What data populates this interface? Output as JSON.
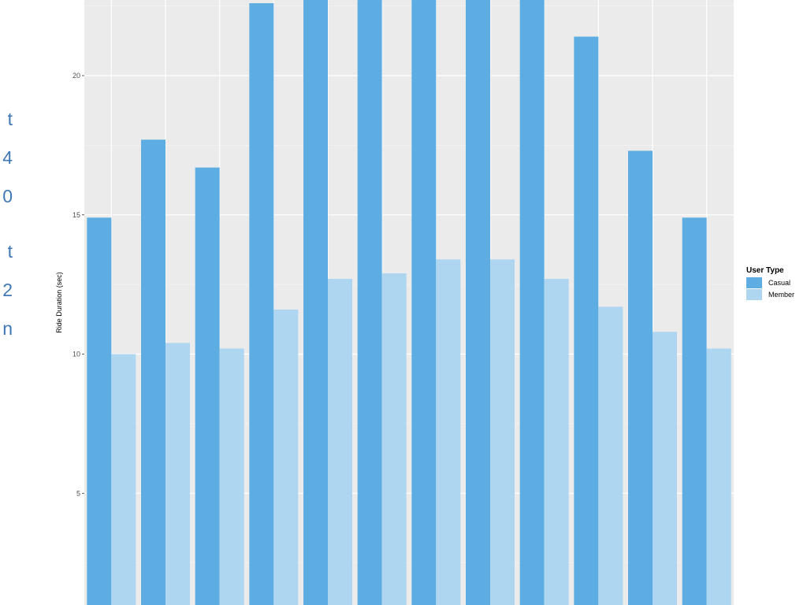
{
  "side_text": [
    "t",
    "4",
    "0",
    "t",
    "2",
    "n"
  ],
  "chart_data": {
    "type": "bar",
    "title": "",
    "xlabel": "",
    "ylabel": "Ride Duration (sec)",
    "ylim": [
      0,
      22.7
    ],
    "y_ticks": [
      5,
      10,
      15,
      20
    ],
    "grid": true,
    "legend_position": "right",
    "legend_title": "User Type",
    "categories": [
      "",
      "",
      "",
      "",
      "",
      "",
      "",
      "",
      "",
      "",
      "",
      ""
    ],
    "series": [
      {
        "name": "Casual",
        "color": "#5dade2",
        "values": [
          14.9,
          17.7,
          16.7,
          22.6,
          23.5,
          23.5,
          23.5,
          23.5,
          23.5,
          21.4,
          17.3,
          14.9
        ]
      },
      {
        "name": "Member",
        "color": "#aed6f1",
        "values": [
          10.0,
          10.4,
          10.2,
          11.6,
          12.7,
          12.9,
          13.4,
          13.4,
          12.7,
          11.7,
          10.8,
          10.2
        ]
      }
    ]
  }
}
